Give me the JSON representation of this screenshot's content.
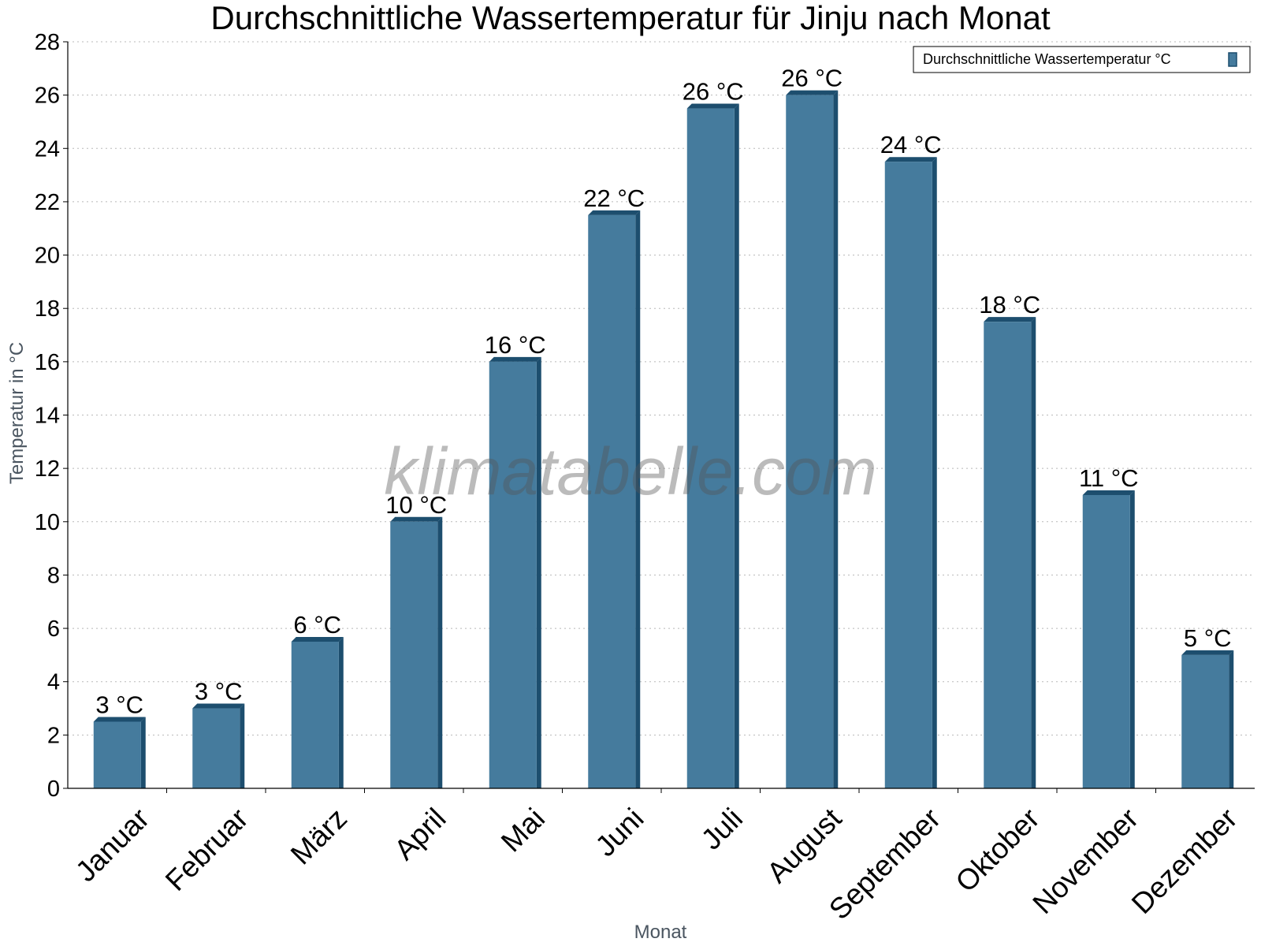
{
  "chart_data": {
    "type": "bar",
    "title": "Durchschnittliche Wassertemperatur für Jinju nach Monat",
    "xlabel": "Monat",
    "ylabel": "Temperatur in °C",
    "categories": [
      "Januar",
      "Februar",
      "März",
      "April",
      "Mai",
      "Juni",
      "Juli",
      "August",
      "September",
      "Oktober",
      "November",
      "Dezember"
    ],
    "series": [
      {
        "name": "Durchschnittliche Wassertemperatur °C",
        "values": [
          2.5,
          3.0,
          5.5,
          10.0,
          16.0,
          21.5,
          25.5,
          26.0,
          23.5,
          17.5,
          11.0,
          5.0
        ],
        "labels": [
          "3 °C",
          "3 °C",
          "6 °C",
          "10 °C",
          "16 °C",
          "22 °C",
          "26 °C",
          "26 °C",
          "24 °C",
          "18 °C",
          "11 °C",
          "5 °C"
        ],
        "color": "#457b9d"
      }
    ],
    "ylim": [
      0,
      28
    ],
    "yticks": [
      "0",
      "2",
      "4",
      "6",
      "8",
      "10",
      "12",
      "14",
      "16",
      "18",
      "20",
      "22",
      "24",
      "26",
      "28"
    ],
    "grid": true,
    "legend_position": "top-right",
    "watermark": "klimatabelle.com"
  }
}
